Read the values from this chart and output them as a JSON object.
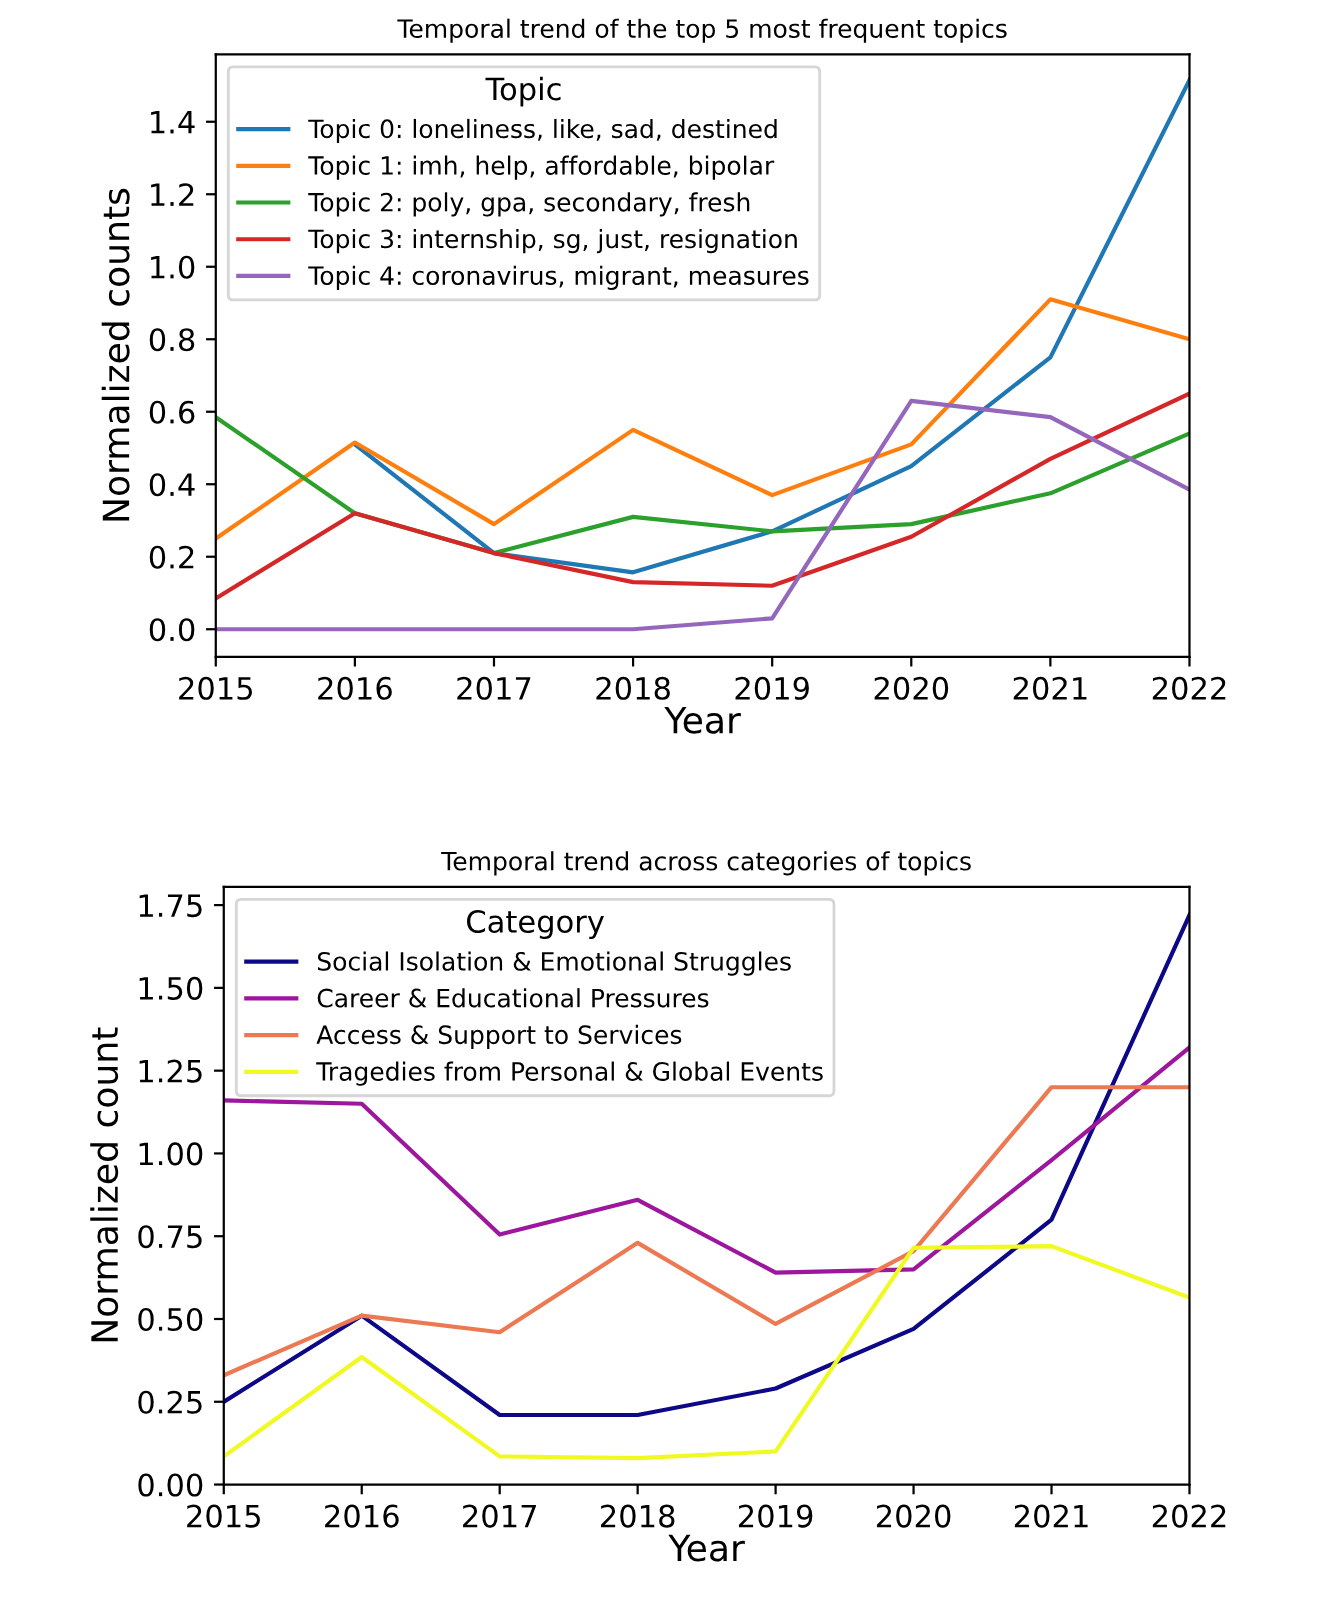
{
  "chart_data": [
    {
      "type": "line",
      "title": "Temporal trend of the top 5 most frequent topics",
      "xlabel": "Year",
      "ylabel": "Normalized counts",
      "legend_title": "Topic",
      "legend": "top left",
      "grid": false,
      "x": [
        2015,
        2016,
        2017,
        2018,
        2019,
        2020,
        2021,
        2022
      ],
      "xlim": [
        2015,
        2022
      ],
      "xticks": [
        2015,
        2016,
        2017,
        2018,
        2019,
        2020,
        2021,
        2022
      ],
      "ylim": [
        -0.076,
        1.586
      ],
      "yticks": [
        {
          "value": 0,
          "label": "0.0"
        },
        0.2,
        0.4,
        0.6,
        0.8,
        {
          "value": 1,
          "label": "1.0"
        },
        1.2,
        1.4
      ],
      "series": [
        {
          "name": "Topic 0: loneliness, like, sad, destined",
          "color": "#1f77b4",
          "values": [
            null,
            0.51,
            0.21,
            0.157,
            0.27,
            0.45,
            0.75,
            1.515
          ]
        },
        {
          "name": "Topic 1: imh, help, affordable, bipolar",
          "color": "#ff7f0e",
          "values": [
            0.25,
            0.515,
            0.29,
            0.55,
            0.37,
            0.51,
            0.91,
            0.8
          ]
        },
        {
          "name": "Topic 2: poly, gpa, secondary, fresh",
          "color": "#2ca02c",
          "values": [
            0.585,
            0.32,
            0.21,
            0.31,
            0.27,
            0.29,
            0.375,
            0.54
          ]
        },
        {
          "name": "Topic 3: internship, sg, just, resignation",
          "color": "#d62728",
          "values": [
            0.085,
            0.32,
            0.21,
            0.13,
            0.12,
            0.255,
            0.47,
            0.65
          ]
        },
        {
          "name": "Topic 4: coronavirus, migrant, measures",
          "color": "#9467bd",
          "values": [
            0,
            0,
            0,
            0,
            0.03,
            0.63,
            0.585,
            0.385
          ]
        }
      ]
    },
    {
      "type": "line",
      "title": "Temporal trend across categories of topics",
      "xlabel": "Year",
      "ylabel": "Normalized count",
      "legend_title": "Category",
      "legend": "top left",
      "grid": false,
      "x": [
        2015,
        2016,
        2017,
        2018,
        2019,
        2020,
        2021,
        2022
      ],
      "xlim": [
        2015,
        2022
      ],
      "xticks": [
        2015,
        2016,
        2017,
        2018,
        2019,
        2020,
        2021,
        2022
      ],
      "ylim": [
        0,
        1.805
      ],
      "yticks": [
        {
          "value": 0,
          "label": "0.00"
        },
        0.25,
        {
          "value": 0.5,
          "label": "0.50"
        },
        0.75,
        {
          "value": 1,
          "label": "1.00"
        },
        1.25,
        {
          "value": 1.5,
          "label": "1.50"
        },
        1.75
      ],
      "series": [
        {
          "name": "Social Isolation & Emotional Struggles",
          "color": "#0d0887",
          "values": [
            0.25,
            0.51,
            0.21,
            0.21,
            0.29,
            0.47,
            0.8,
            1.72
          ]
        },
        {
          "name": "Career & Educational Pressures",
          "color": "#9c179e",
          "values": [
            1.16,
            1.15,
            0.755,
            0.86,
            0.64,
            0.65,
            0.98,
            1.32
          ]
        },
        {
          "name": "Access & Support to Services",
          "color": "#ed7953",
          "values": [
            0.33,
            0.51,
            0.46,
            0.73,
            0.485,
            0.705,
            1.2,
            1.2
          ]
        },
        {
          "name": "Tragedies from Personal & Global Events",
          "color": "#f0f921",
          "values": [
            0.085,
            0.385,
            0.085,
            0.08,
            0.1,
            0.715,
            0.72,
            0.565
          ]
        }
      ]
    }
  ]
}
